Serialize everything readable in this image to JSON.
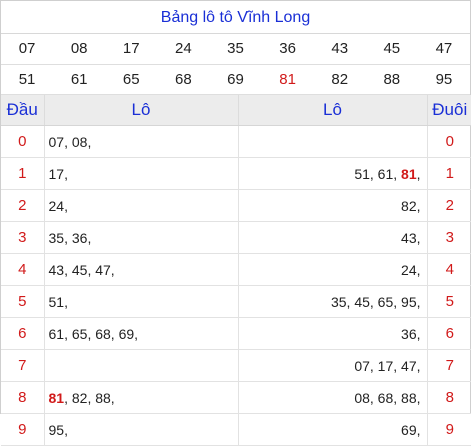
{
  "title": "Bảng lô tô Vĩnh Long",
  "number_rows": [
    [
      "07",
      "08",
      "17",
      "24",
      "35",
      "36",
      "43",
      "45",
      "47"
    ],
    [
      "51",
      "61",
      "65",
      "68",
      "69",
      "81",
      "82",
      "88",
      "95"
    ]
  ],
  "highlight_number": "81",
  "colors": {
    "title_blue": "#1a2fd6",
    "red": "#d11a1a",
    "header_bg": "#ececec"
  },
  "header": {
    "dau": "Đầu",
    "lo_left": "Lô",
    "lo_right": "Lô",
    "duoi": "Đuôi"
  },
  "rows": [
    {
      "dau": "0",
      "left": "07, 08,",
      "right": "",
      "duoi": "0"
    },
    {
      "dau": "1",
      "left": "17,",
      "right": "51, 61, 81,",
      "duoi": "1"
    },
    {
      "dau": "2",
      "left": "24,",
      "right": "82,",
      "duoi": "2"
    },
    {
      "dau": "3",
      "left": "35, 36,",
      "right": "43,",
      "duoi": "3"
    },
    {
      "dau": "4",
      "left": "43, 45, 47,",
      "right": "24,",
      "duoi": "4"
    },
    {
      "dau": "5",
      "left": "51,",
      "right": "35, 45, 65, 95,",
      "duoi": "5"
    },
    {
      "dau": "6",
      "left": "61, 65, 68, 69,",
      "right": "36,",
      "duoi": "6"
    },
    {
      "dau": "7",
      "left": "",
      "right": "07, 17, 47,",
      "duoi": "7"
    },
    {
      "dau": "8",
      "left": "81, 82, 88,",
      "right": "08, 68, 88,",
      "duoi": "8"
    },
    {
      "dau": "9",
      "left": "95,",
      "right": "69,",
      "duoi": "9"
    }
  ]
}
